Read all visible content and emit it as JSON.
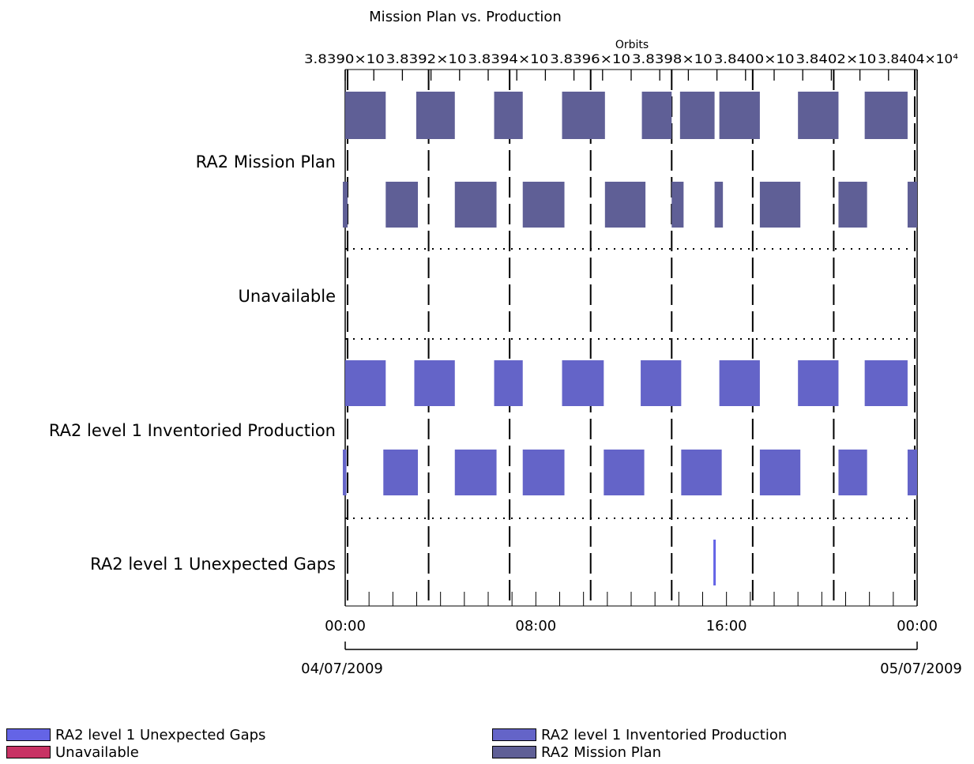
{
  "chart_data": {
    "type": "gantt",
    "title": "Mission Plan vs. Production",
    "top_axis": {
      "label": "Orbits",
      "ticks": [
        "3.8390×10⁴",
        "3.8392×10⁴",
        "3.8394×10⁴",
        "3.8396×10⁴",
        "3.8398×10⁴",
        "3.8400×10⁴",
        "3.8402×10⁴",
        "3.8404×10⁴"
      ],
      "tick_labels": [
        "3.8390×10",
        "3.8392×10",
        "3.8394×10",
        "3.8396×10",
        "3.8398×10",
        "3.8400×10",
        "3.8402×10",
        "3.8404×10⁴"
      ]
    },
    "time_axis": {
      "range_hours": [
        0,
        24
      ],
      "ticks": [
        {
          "hour": 0,
          "label": "00:00"
        },
        {
          "hour": 8,
          "label": "08:00"
        },
        {
          "hour": 16,
          "label": "16:00"
        },
        {
          "hour": 24,
          "label": "00:00"
        }
      ],
      "start_date": "04/07/2009",
      "end_date": "05/07/2009"
    },
    "orbit_boundaries_hours": [
      0.1,
      3.5,
      6.9,
      10.3,
      13.7,
      17.1,
      20.5,
      23.9
    ],
    "series": [
      {
        "name": "RA2 Mission Plan",
        "color": "#5f5f96",
        "tracks": [
          [
            [
              0,
              1.7
            ],
            [
              2.98,
              4.6
            ],
            [
              6.25,
              7.45
            ],
            [
              9.1,
              10.9
            ],
            [
              12.45,
              13.7
            ],
            [
              14.05,
              15.5
            ],
            [
              15.7,
              17.4
            ],
            [
              19.0,
              20.7
            ],
            [
              21.8,
              23.6
            ]
          ],
          [
            [
              -0.1,
              0.1
            ],
            [
              1.7,
              3.05
            ],
            [
              4.6,
              6.35
            ],
            [
              7.45,
              9.2
            ],
            [
              10.9,
              12.6
            ],
            [
              13.7,
              14.2
            ],
            [
              15.5,
              15.85
            ],
            [
              17.4,
              19.1
            ],
            [
              20.7,
              21.9
            ],
            [
              23.6,
              24.0
            ]
          ]
        ]
      },
      {
        "name": "Unavailable",
        "color": "#c83264",
        "tracks": [
          [],
          []
        ]
      },
      {
        "name": "RA2 level 1 Inventoried Production",
        "color": "#6464c8",
        "tracks": [
          [
            [
              0,
              1.7
            ],
            [
              2.9,
              4.6
            ],
            [
              6.25,
              7.45
            ],
            [
              9.1,
              10.85
            ],
            [
              12.4,
              14.1
            ],
            [
              15.7,
              17.4
            ],
            [
              19.0,
              20.7
            ],
            [
              21.8,
              23.6
            ]
          ],
          [
            [
              -0.1,
              0.05
            ],
            [
              1.6,
              3.05
            ],
            [
              4.6,
              6.35
            ],
            [
              7.45,
              9.2
            ],
            [
              10.85,
              12.55
            ],
            [
              14.1,
              15.8
            ],
            [
              17.4,
              19.1
            ],
            [
              20.7,
              21.9
            ],
            [
              23.6,
              24.0
            ]
          ]
        ]
      },
      {
        "name": "RA2 level 1 Unexpected Gaps",
        "color": "#6464e6",
        "tracks": [
          [
            [
              15.45,
              15.55
            ]
          ]
        ]
      }
    ],
    "row_labels": [
      "RA2 Mission Plan",
      "Unavailable",
      "RA2 level 1 Inventoried Production",
      "RA2 level 1 Unexpected Gaps"
    ],
    "legend": {
      "placement": "bottom",
      "items": [
        {
          "label": "RA2 level 1 Unexpected Gaps",
          "color": "#6464e6"
        },
        {
          "label": "Unavailable",
          "color": "#c83264"
        },
        {
          "label": "RA2 level 1 Inventoried Production",
          "color": "#6464c8"
        },
        {
          "label": "RA2 Mission Plan",
          "color": "#5f5f96"
        }
      ]
    }
  }
}
